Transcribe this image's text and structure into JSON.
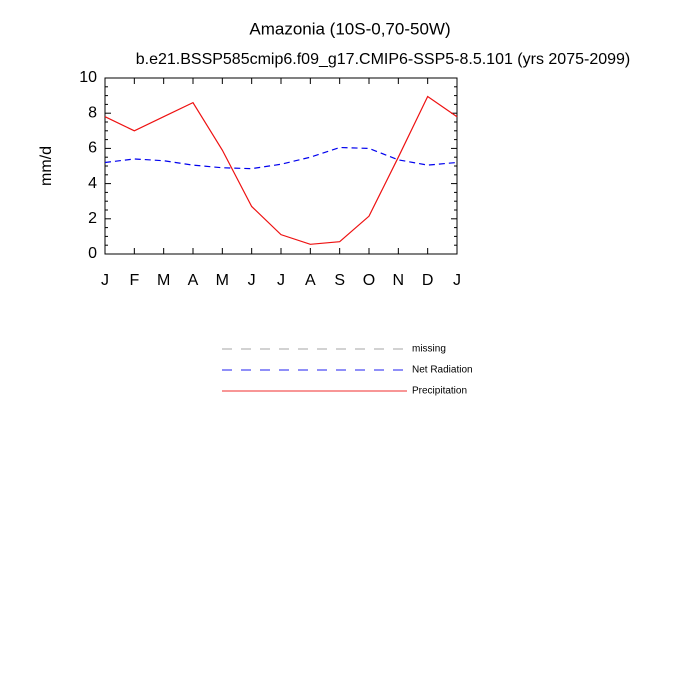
{
  "chart_data": {
    "type": "line",
    "title": "Amazonia (10S-0,70-50W)",
    "subtitle": "b.e21.BSSP585cmip6.f09_g17.CMIP6-SSP5-8.5.101 (yrs 2075-2099)",
    "y_label": "mm/d",
    "categories": [
      "J",
      "F",
      "M",
      "A",
      "M",
      "J",
      "J",
      "A",
      "S",
      "O",
      "N",
      "D",
      "J"
    ],
    "ylim": [
      0,
      10
    ],
    "yticks": [
      0,
      2,
      4,
      6,
      8,
      10
    ],
    "series": [
      {
        "name": "missing",
        "color": "#999999",
        "line_style": "dashed",
        "values": [
          null,
          null,
          null,
          null,
          null,
          null,
          null,
          null,
          null,
          null,
          null,
          null,
          null
        ]
      },
      {
        "name": "Net Radiation",
        "color": "#0000ee",
        "line_style": "dashed",
        "values": [
          5.2,
          5.4,
          5.3,
          5.05,
          4.9,
          4.85,
          5.1,
          5.5,
          6.05,
          6.0,
          5.35,
          5.05,
          5.2
        ]
      },
      {
        "name": "Precipitation",
        "color": "#ee1111",
        "line_style": "solid",
        "values": [
          7.8,
          7.0,
          7.8,
          8.6,
          5.9,
          2.7,
          1.1,
          0.55,
          0.7,
          2.15,
          5.5,
          8.95,
          7.8
        ]
      }
    ]
  }
}
